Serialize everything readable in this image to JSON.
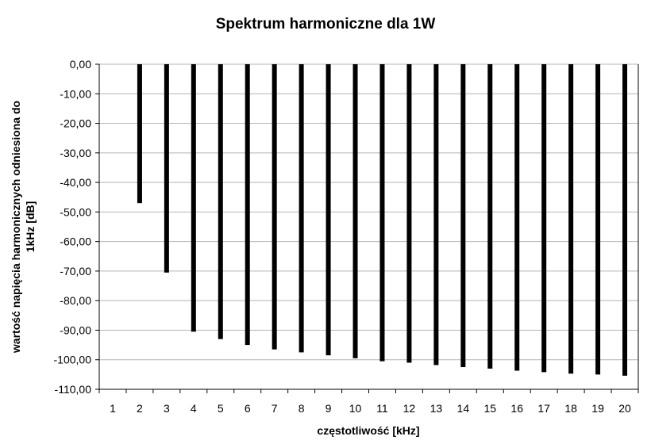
{
  "chart_data": {
    "type": "bar",
    "title": "Spektrum harmoniczne dla 1W",
    "xlabel": "częstotliwość [kHz]",
    "ylabel_lines": [
      "wartość napięcia harmonicznych odniesiona do",
      "1kHz [dB]"
    ],
    "categories": [
      "1",
      "2",
      "3",
      "4",
      "5",
      "6",
      "7",
      "8",
      "9",
      "10",
      "11",
      "12",
      "13",
      "14",
      "15",
      "16",
      "17",
      "18",
      "19",
      "20"
    ],
    "values": [
      0,
      -47,
      -70.5,
      -90.5,
      -93,
      -95,
      -96.5,
      -97.5,
      -98.5,
      -99.5,
      -100.5,
      -101,
      -101.8,
      -102.5,
      -103,
      -103.7,
      -104.2,
      -104.7,
      -105,
      -105.4
    ],
    "ylim": [
      -110,
      0
    ],
    "ytick_step": 10,
    "ytick_labels": [
      "0,00",
      "-10,00",
      "-20,00",
      "-30,00",
      "-40,00",
      "-50,00",
      "-60,00",
      "-70,00",
      "-80,00",
      "-90,00",
      "-100,00",
      "-110,00"
    ],
    "grid": true,
    "legend": "none",
    "bar_color": "#000000",
    "grid_color": "#b4b4b4"
  }
}
